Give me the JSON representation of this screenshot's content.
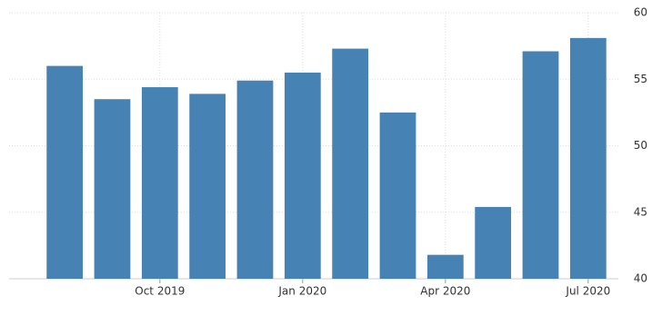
{
  "chart_data": {
    "type": "bar",
    "categories": [
      null,
      null,
      "Oct 2019",
      null,
      null,
      "Jan 2020",
      null,
      null,
      "Apr 2020",
      null,
      null,
      "Jul 2020"
    ],
    "values": [
      56.0,
      53.5,
      54.4,
      53.9,
      54.9,
      55.5,
      57.3,
      52.5,
      41.8,
      45.4,
      57.1,
      58.1
    ],
    "color": "#4682b4",
    "ylim": [
      40,
      60
    ],
    "yticks": [
      40,
      45,
      50,
      55,
      60
    ],
    "grid": true
  }
}
